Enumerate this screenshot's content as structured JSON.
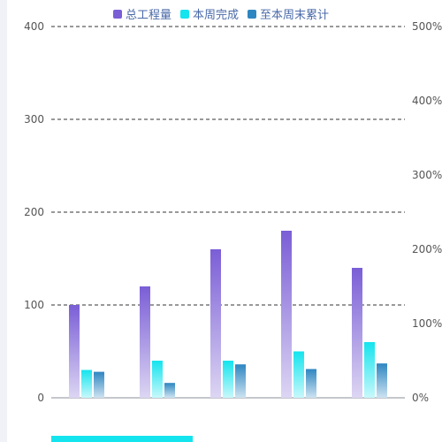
{
  "legend": [
    {
      "label": "总工程量",
      "color": "#7a5ed6"
    },
    {
      "label": "本周完成",
      "color": "#14e4ee"
    },
    {
      "label": "至本周末累计",
      "color": "#2e86c1"
    }
  ],
  "chart_data": {
    "type": "bar",
    "categories": [
      "",
      "",
      "",
      "",
      ""
    ],
    "series": [
      {
        "name": "总工程量",
        "values": [
          100,
          120,
          160,
          180,
          140
        ],
        "axis": "left",
        "color_top": "#7a5ed6",
        "color_bottom": "#ddd6f3"
      },
      {
        "name": "本周完成",
        "values": [
          30,
          40,
          40,
          50,
          60
        ],
        "axis": "left",
        "color_top": "#14e4ee",
        "color_bottom": "#c8f8fb"
      },
      {
        "name": "至本周末累计",
        "values": [
          28,
          16,
          36,
          31,
          37
        ],
        "axis": "left",
        "color_top": "#2e86c1",
        "color_bottom": "#cde3f1"
      }
    ],
    "y_left": {
      "ticks": [
        "0",
        "100",
        "200",
        "300",
        "400"
      ],
      "range": [
        0,
        400
      ]
    },
    "y_right": {
      "ticks": [
        "0%",
        "100%",
        "200%",
        "300%",
        "400%",
        "500%"
      ],
      "range": [
        0,
        500
      ]
    },
    "grid": true,
    "legend_position": "top-center"
  }
}
